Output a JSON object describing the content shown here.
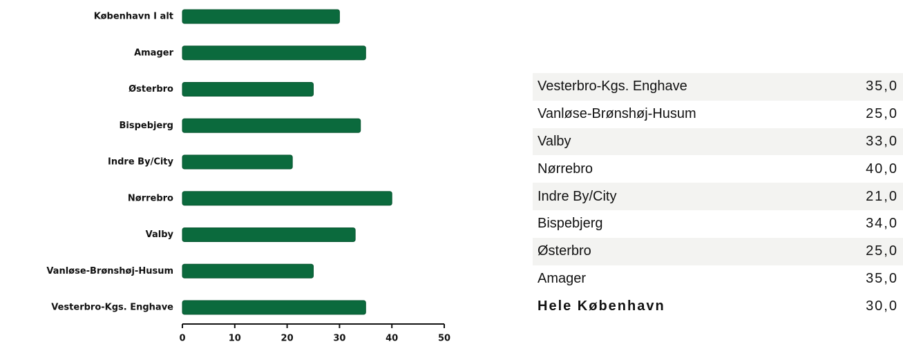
{
  "chart_data": {
    "type": "hbar",
    "categories": [
      "København I alt",
      "Amager",
      "Østerbro",
      "Bispebjerg",
      "Indre By/City",
      "Nørrebro",
      "Valby",
      "Vanløse-Brønshøj-Husum",
      "Vesterbro-Kgs. Enghave"
    ],
    "values": [
      30,
      35,
      25,
      34,
      21,
      40,
      33,
      25,
      35
    ],
    "color": "#0b6a3d",
    "xlim": [
      0,
      50
    ],
    "xticks": [
      0,
      10,
      20,
      30,
      40,
      50
    ]
  },
  "table": {
    "rows": [
      [
        "Vesterbro-Kgs. Enghave",
        "35,0"
      ],
      [
        "Vanløse-Brønshøj-Husum",
        "25,0"
      ],
      [
        "Valby",
        "33,0"
      ],
      [
        "Nørrebro",
        "40,0"
      ],
      [
        "Indre By/City",
        "21,0"
      ],
      [
        "Bispebjerg",
        "34,0"
      ],
      [
        "Østerbro",
        "25,0"
      ],
      [
        "Amager",
        "35,0"
      ],
      [
        "Hele København",
        "30,0"
      ]
    ]
  }
}
